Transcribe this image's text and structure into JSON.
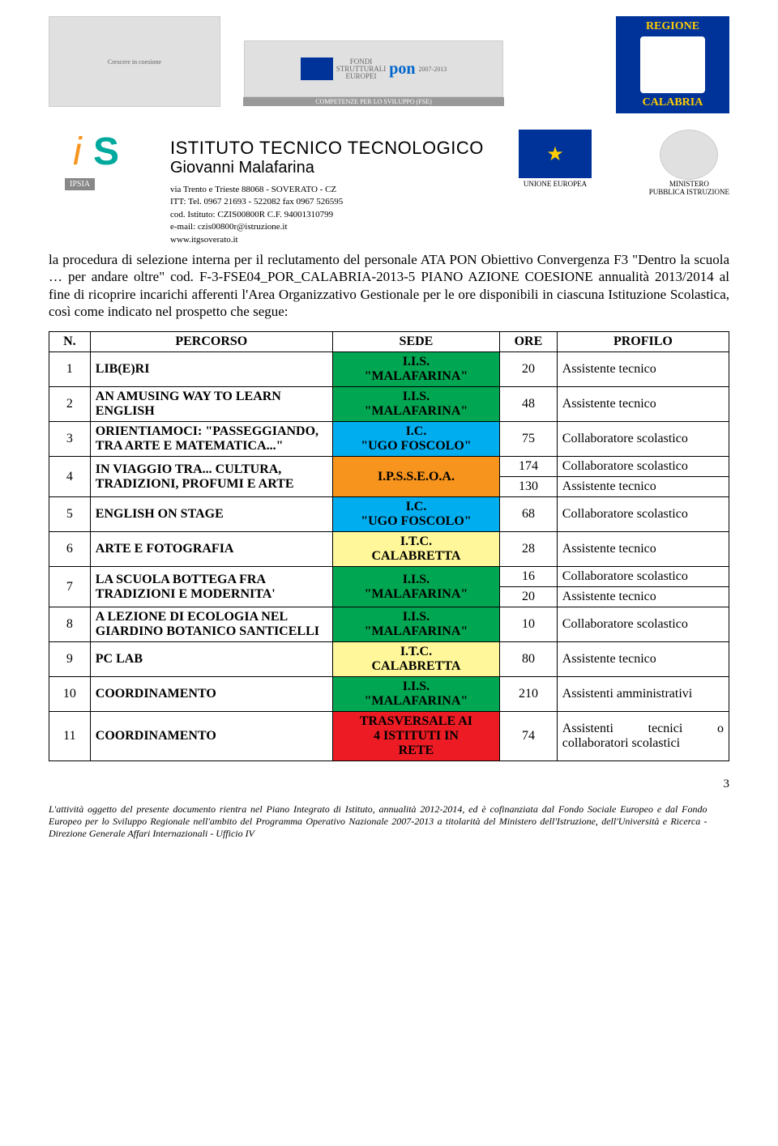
{
  "header": {
    "regione_top": "REGIONE",
    "regione_bottom": "CALABRIA",
    "eu_label": "UNIONE EUROPEA",
    "min_label1": "MINISTERO",
    "min_label2": "PUBBLICA ISTRUZIONE",
    "pon_label": "COMPETENZE PER LO SVILUPPO (FSE)",
    "fondi_l1": "FONDI",
    "fondi_l2": "STRUTTURALI",
    "fondi_l3": "EUROPEI",
    "fondi_years": "2007-2013",
    "coesione": "Crescere in coesione",
    "its_ipsia": "IPSIA",
    "inst_l1": "ISTITUTO TECNICO TECNOLOGICO",
    "inst_l2": "Giovanni Malafarina",
    "addr": "via Trento e Trieste 88068 - SOVERATO - CZ",
    "tel": "ITT: Tel. 0967 21693 - 522082   fax 0967 526595",
    "cod": "cod. Istituto: CZIS00800R  C.F. 94001310799",
    "email": "e-mail: czis00800r@istruzione.it",
    "web": "www.itgsoverato.it"
  },
  "body_text": "la procedura di selezione interna per il reclutamento del personale ATA PON Obiettivo Convergenza F3 \"Dentro la scuola … per andare oltre\" cod. F-3-FSE04_POR_CALABRIA-2013-5 PIANO AZIONE COESIONE annualità 2013/2014 al fine di ricoprire incarichi afferenti l'Area Organizzativo Gestionale per le ore disponibili in ciascuna Istituzione Scolastica, così come indicato nel prospetto che segue:",
  "table": {
    "headers": {
      "n": "N.",
      "percorso": "PERCORSO",
      "sede": "SEDE",
      "ore": "ORE",
      "profilo": "PROFILO"
    },
    "colors": {
      "green": "#00a651",
      "blue": "#00aeef",
      "yellow": "#fff799",
      "orange": "#f7941d",
      "red": "#ed1c24",
      "white": "#ffffff"
    },
    "sede_labels": {
      "malafarina_l1": "I.I.S.",
      "malafarina_l2": "\"MALAFARINA\"",
      "foscolo_l1": "I.C.",
      "foscolo_l2": "\"UGO FOSCOLO\"",
      "ipsseo": "I.P.S.S.E.O.A.",
      "calabretta_l1": "I.T.C.",
      "calabretta_l2": "CALABRETTA",
      "trasversale_l1": "TRASVERSALE AI",
      "trasversale_l2": "4 ISTITUTI IN",
      "trasversale_l3": "RETE"
    },
    "rows": [
      {
        "n": "1",
        "percorso": "LIB(E)RI",
        "sede": "malafarina",
        "sede_color": "green",
        "ore": "20",
        "profilo": "Assistente tecnico"
      },
      {
        "n": "2",
        "percorso": "AN AMUSING WAY TO LEARN ENGLISH",
        "sede": "malafarina",
        "sede_color": "green",
        "ore": "48",
        "profilo": "Assistente tecnico"
      },
      {
        "n": "3",
        "percorso": "ORIENTIAMOCI: \"PASSEGGIANDO, TRA ARTE E MATEMATICA...\"",
        "sede": "foscolo",
        "sede_color": "blue",
        "ore": "75",
        "profilo": "Collaboratore scolastico"
      },
      {
        "n": "4",
        "percorso": "IN VIAGGIO TRA... CULTURA, TRADIZIONI, PROFUMI E ARTE",
        "sede": "ipsseo",
        "sede_color": "orange",
        "ore1": "174",
        "profilo1": "Collaboratore scolastico",
        "ore2": "130",
        "profilo2": "Assistente tecnico"
      },
      {
        "n": "5",
        "percorso": "ENGLISH ON STAGE",
        "sede": "foscolo",
        "sede_color": "blue",
        "ore": "68",
        "profilo": "Collaboratore scolastico"
      },
      {
        "n": "6",
        "percorso": "ARTE E FOTOGRAFIA",
        "sede": "calabretta",
        "sede_color": "yellow",
        "ore": "28",
        "profilo": "Assistente tecnico"
      },
      {
        "n": "7",
        "percorso": "LA SCUOLA BOTTEGA FRA TRADIZIONI E MODERNITA'",
        "sede": "malafarina",
        "sede_color": "green",
        "ore1": "16",
        "profilo1": "Collaboratore scolastico",
        "ore2": "20",
        "profilo2": "Assistente tecnico"
      },
      {
        "n": "8",
        "percorso": "A LEZIONE DI ECOLOGIA NEL GIARDINO BOTANICO SANTICELLI",
        "sede": "malafarina",
        "sede_color": "green",
        "ore": "10",
        "profilo": "Collaboratore scolastico"
      },
      {
        "n": "9",
        "percorso": "PC LAB",
        "sede": "calabretta",
        "sede_color": "yellow",
        "ore": "80",
        "profilo": "Assistente tecnico"
      },
      {
        "n": "10",
        "percorso": "COORDINAMENTO",
        "sede": "malafarina",
        "sede_color": "green",
        "ore": "210",
        "profilo": "Assistenti amministrativi"
      },
      {
        "n": "11",
        "percorso": "COORDINAMENTO",
        "sede": "trasversale",
        "sede_color": "red",
        "ore": "74",
        "profilo": "Assistenti tecnici o collaboratori scolastici"
      }
    ]
  },
  "footer": {
    "text": "L'attività oggetto del presente documento rientra nel Piano Integrato di Istituto, annualità 2012-2014, ed è cofinanziata dal Fondo Sociale Europeo e dal Fondo Europeo per lo Sviluppo Regionale nell'ambito del Programma Operativo Nazionale 2007-2013 a titolarità del Ministero dell'Istruzione, dell'Università e Ricerca - Direzione Generale Affari Internazionali - Ufficio IV",
    "page": "3"
  }
}
